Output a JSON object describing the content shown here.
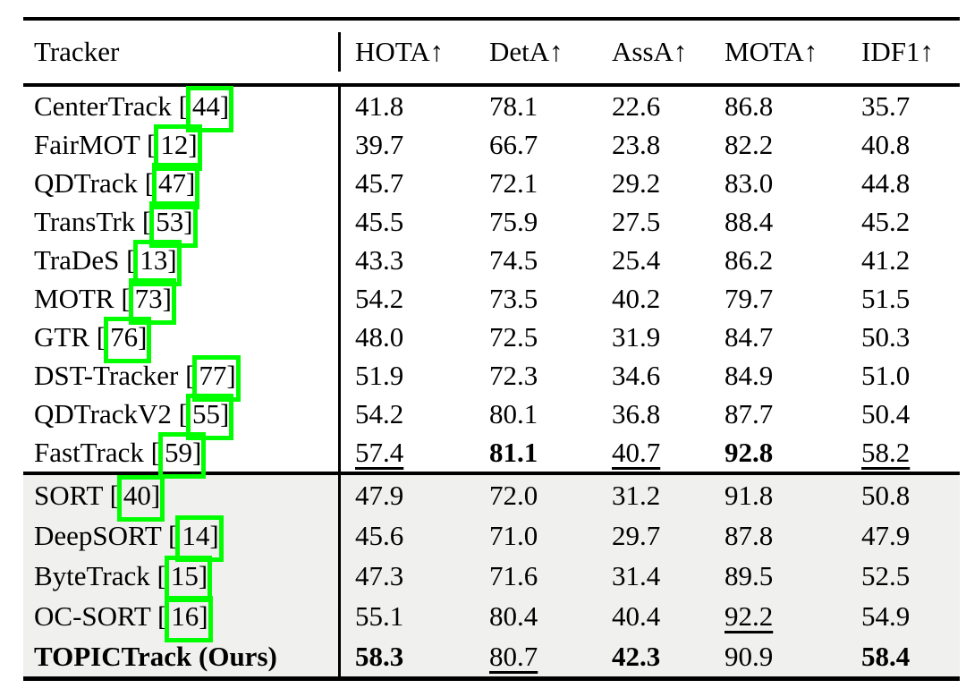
{
  "colors": {
    "link_box_green": "#00ff00",
    "shaded_section_bg": "#f0f0ef",
    "rule_black": "#000000",
    "page_bg": "#ffffff"
  },
  "table": {
    "columns": [
      "Tracker",
      "HOTA↑",
      "DetA↑",
      "AssA↑",
      "MOTA↑",
      "IDF1↑"
    ],
    "sections": [
      {
        "shaded": false,
        "rows": [
          {
            "name": "CenterTrack",
            "cite": "44",
            "values": [
              "41.8",
              "78.1",
              "22.6",
              "86.8",
              "35.7"
            ],
            "styles": [
              "",
              "",
              "",
              "",
              ""
            ]
          },
          {
            "name": "FairMOT",
            "cite": "12",
            "values": [
              "39.7",
              "66.7",
              "23.8",
              "82.2",
              "40.8"
            ],
            "styles": [
              "",
              "",
              "",
              "",
              ""
            ]
          },
          {
            "name": "QDTrack",
            "cite": "47",
            "values": [
              "45.7",
              "72.1",
              "29.2",
              "83.0",
              "44.8"
            ],
            "styles": [
              "",
              "",
              "",
              "",
              ""
            ]
          },
          {
            "name": "TransTrk",
            "cite": "53",
            "values": [
              "45.5",
              "75.9",
              "27.5",
              "88.4",
              "45.2"
            ],
            "styles": [
              "",
              "",
              "",
              "",
              ""
            ]
          },
          {
            "name": "TraDeS",
            "cite": "13",
            "values": [
              "43.3",
              "74.5",
              "25.4",
              "86.2",
              "41.2"
            ],
            "styles": [
              "",
              "",
              "",
              "",
              ""
            ]
          },
          {
            "name": "MOTR",
            "cite": "73",
            "values": [
              "54.2",
              "73.5",
              "40.2",
              "79.7",
              "51.5"
            ],
            "styles": [
              "",
              "",
              "",
              "",
              ""
            ]
          },
          {
            "name": "GTR",
            "cite": "76",
            "values": [
              "48.0",
              "72.5",
              "31.9",
              "84.7",
              "50.3"
            ],
            "styles": [
              "",
              "",
              "",
              "",
              ""
            ]
          },
          {
            "name": "DST-Tracker",
            "cite": "77",
            "values": [
              "51.9",
              "72.3",
              "34.6",
              "84.9",
              "51.0"
            ],
            "styles": [
              "",
              "",
              "",
              "",
              ""
            ]
          },
          {
            "name": "QDTrackV2",
            "cite": "55",
            "values": [
              "54.2",
              "80.1",
              "36.8",
              "87.7",
              "50.4"
            ],
            "styles": [
              "",
              "",
              "",
              "",
              ""
            ]
          },
          {
            "name": "FastTrack",
            "cite": "59",
            "values": [
              "57.4",
              "81.1",
              "40.7",
              "92.8",
              "58.2"
            ],
            "styles": [
              "u",
              "b",
              "u",
              "b",
              "u"
            ]
          }
        ]
      },
      {
        "shaded": true,
        "rows": [
          {
            "name": "SORT",
            "cite": "40",
            "values": [
              "47.9",
              "72.0",
              "31.2",
              "91.8",
              "50.8"
            ],
            "styles": [
              "",
              "",
              "",
              "",
              ""
            ]
          },
          {
            "name": "DeepSORT",
            "cite": "14",
            "values": [
              "45.6",
              "71.0",
              "29.7",
              "87.8",
              "47.9"
            ],
            "styles": [
              "",
              "",
              "",
              "",
              ""
            ]
          },
          {
            "name": "ByteTrack",
            "cite": "15",
            "values": [
              "47.3",
              "71.6",
              "31.4",
              "89.5",
              "52.5"
            ],
            "styles": [
              "",
              "",
              "",
              "",
              ""
            ]
          },
          {
            "name": "OC-SORT",
            "cite": "16",
            "values": [
              "55.1",
              "80.4",
              "40.4",
              "92.2",
              "54.9"
            ],
            "styles": [
              "",
              "",
              "",
              "u",
              ""
            ]
          },
          {
            "name": "TOPICTrack (Ours)",
            "cite": "",
            "bold_name": true,
            "values": [
              "58.3",
              "80.7",
              "42.3",
              "90.9",
              "58.4"
            ],
            "styles": [
              "b",
              "u",
              "b",
              "",
              "b"
            ]
          }
        ]
      }
    ]
  }
}
